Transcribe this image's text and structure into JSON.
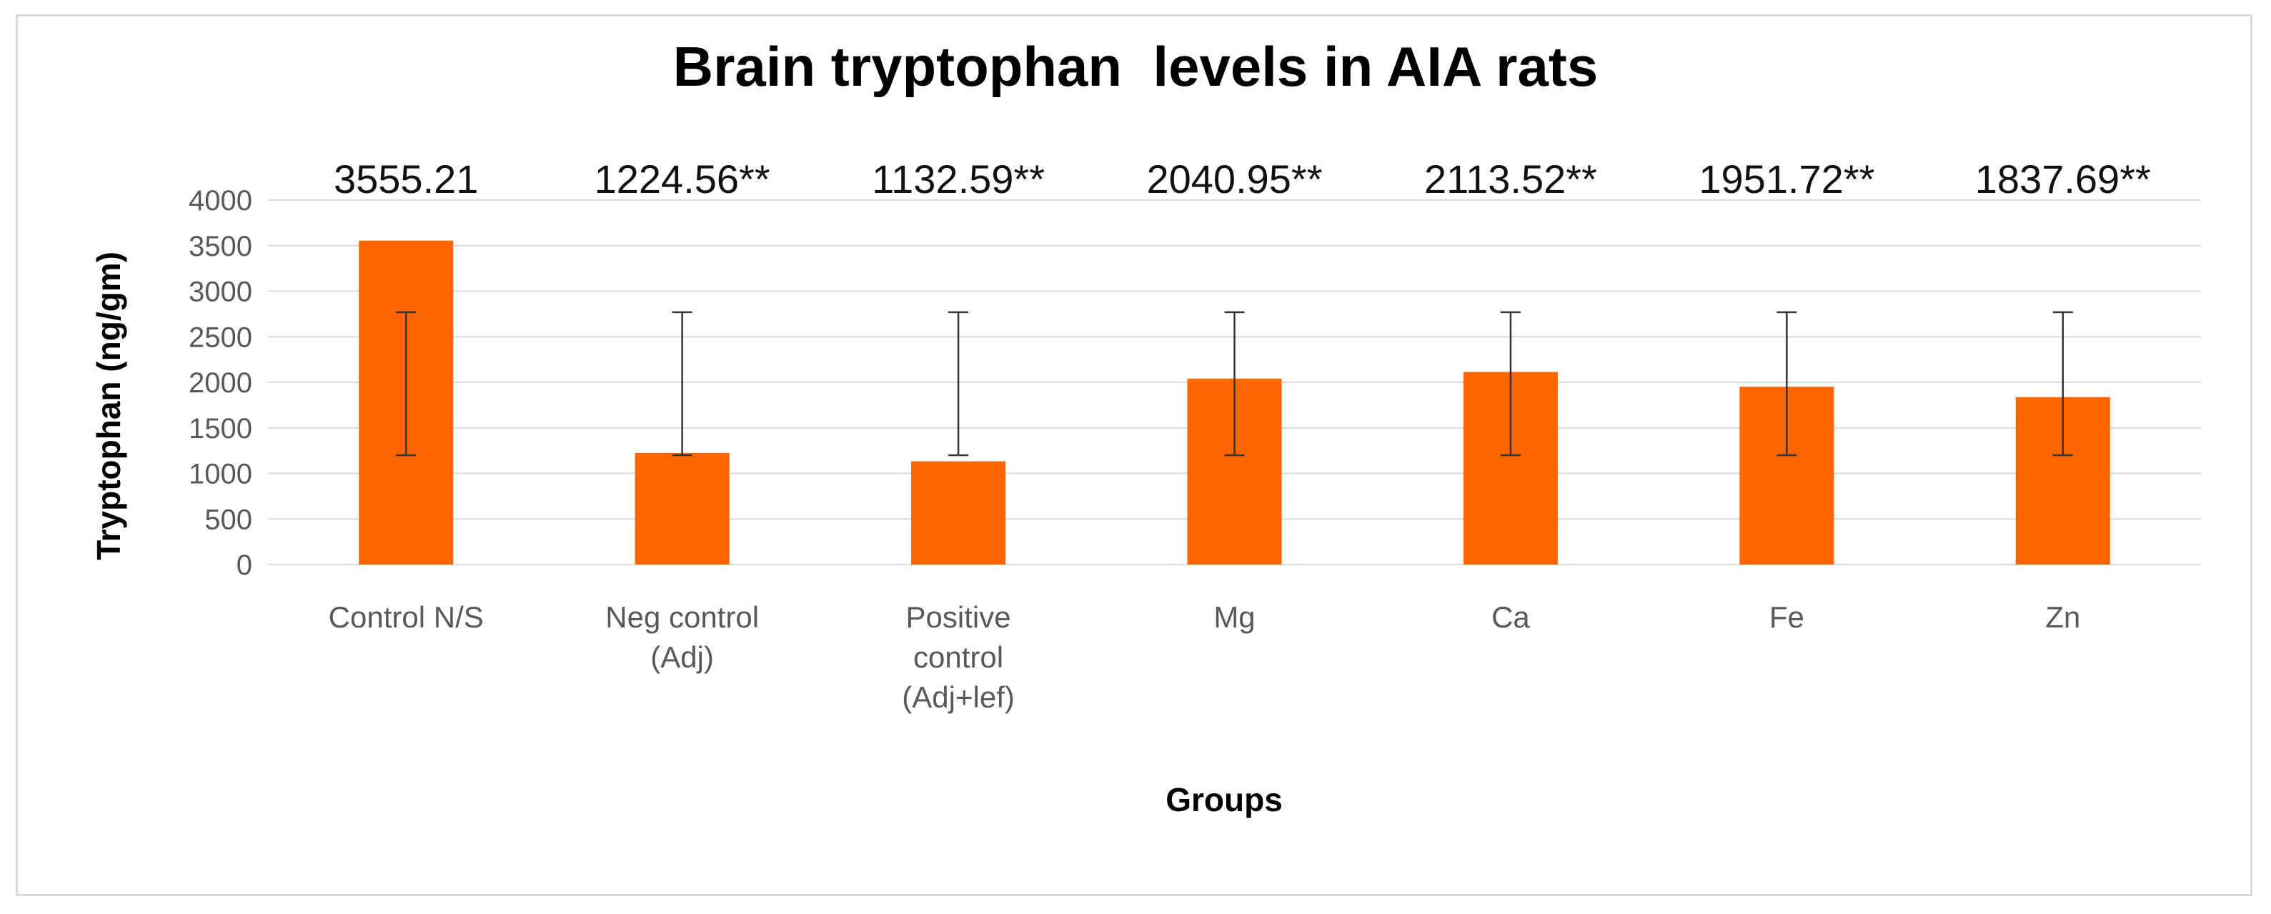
{
  "colors": {
    "bar": "#ff6600"
  },
  "chart_data": {
    "type": "bar",
    "title": "Brain tryptophan  levels in AIA rats",
    "xlabel": "Groups",
    "ylabel": "Tryptophan (ng/gm)",
    "ylim": [
      0,
      4000
    ],
    "yticks": [
      0,
      500,
      1000,
      1500,
      2000,
      2500,
      3000,
      3500,
      4000
    ],
    "grid": true,
    "categories": [
      [
        "Control N/S"
      ],
      [
        "Neg control",
        "(Adj)"
      ],
      [
        "Positive",
        "control",
        "(Adj+lef)"
      ],
      [
        "Mg"
      ],
      [
        "Ca"
      ],
      [
        "Fe"
      ],
      [
        "Zn"
      ]
    ],
    "values": [
      3555.21,
      1224.56,
      1132.59,
      2040.95,
      2113.52,
      1951.72,
      1837.69
    ],
    "data_labels": [
      "3555.21",
      "1224.56**",
      "1132.59**",
      "2040.95**",
      "2113.52**",
      "1951.72**",
      "1837.69**"
    ],
    "error_bars": {
      "lower": [
        1200,
        1200,
        1200,
        1200,
        1200,
        1200,
        1200
      ],
      "upper": [
        2770,
        2770,
        2770,
        2770,
        2770,
        2770,
        2770
      ]
    }
  }
}
